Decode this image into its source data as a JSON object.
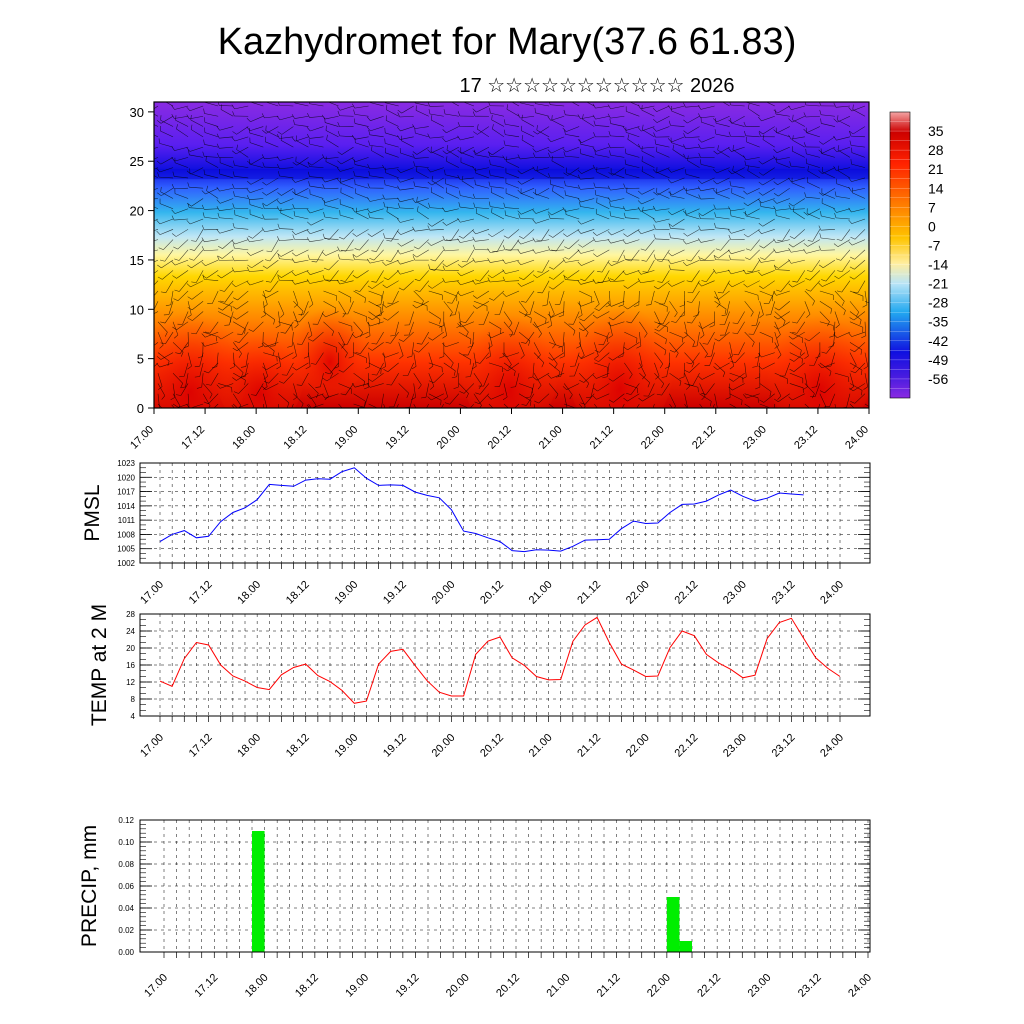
{
  "title": "Kazhydromet for Mary(37.6 61.83)",
  "subtitle": "17 ☆☆☆☆☆☆☆☆☆☆☆ 2026",
  "colors": {
    "pmsl_line": "#0000ff",
    "temp_line": "#ff0000",
    "precip_bar": "#00ee00",
    "wind_barb": "#000000",
    "gridline": "#000000"
  },
  "chart_data": [
    {
      "id": "section",
      "type": "heatmap",
      "description_overlay": "wind barbs",
      "yticks": [
        0,
        5,
        10,
        15,
        20,
        25,
        30
      ],
      "ylim": [
        0,
        31
      ],
      "xlim": [
        17.0,
        24.0
      ],
      "xticks": [
        "17.00",
        "17.12",
        "18.00",
        "18.12",
        "19.00",
        "19.12",
        "20.00",
        "20.12",
        "21.00",
        "21.12",
        "22.00",
        "22.12",
        "23.00",
        "23.12",
        "24.00"
      ],
      "colorbar": {
        "labels": [
          "35",
          "28",
          "21",
          "14",
          "7",
          "0",
          "-7",
          "-14",
          "-21",
          "-28",
          "-35",
          "-42",
          "-49",
          "-56"
        ],
        "range": [
          -63,
          42
        ]
      }
    },
    {
      "id": "pmsl",
      "type": "line",
      "ylabel": "PMSL",
      "ylim": [
        1002,
        1023
      ],
      "yticks": [
        "1002",
        "1005",
        "1008",
        "1011",
        "1014",
        "1017",
        "1020",
        "1023"
      ],
      "xticks": [
        "17.00",
        "17.12",
        "18.00",
        "18.12",
        "19.00",
        "19.12",
        "20.00",
        "20.12",
        "21.00",
        "21.12",
        "22.00",
        "22.12",
        "23.00",
        "23.12",
        "24.00"
      ],
      "step_hours": 3,
      "values": [
        1006.5,
        1008.0,
        1008.8,
        1007.3,
        1007.6,
        1010.7,
        1012.6,
        1013.6,
        1015.3,
        1018.5,
        1018.3,
        1018.1,
        1019.4,
        1019.7,
        1019.6,
        1021.2,
        1022.0,
        1019.8,
        1018.3,
        1018.4,
        1018.3,
        1016.9,
        1016.2,
        1015.7,
        1013.2,
        1008.7,
        1008.2,
        1007.3,
        1006.5,
        1004.6,
        1004.4,
        1004.8,
        1004.7,
        1004.5,
        1005.5,
        1006.8,
        1006.9,
        1007.0,
        1009.2,
        1010.8,
        1010.3,
        1010.4,
        1012.6,
        1014.3,
        1014.4,
        1015.0,
        1016.3,
        1017.3,
        1016.0,
        1015.0,
        1015.6,
        1016.7,
        1016.5,
        1016.3
      ]
    },
    {
      "id": "temp",
      "type": "line",
      "ylabel": "TEMP at 2 M",
      "ylim": [
        4,
        28
      ],
      "yticks": [
        "4",
        "8",
        "12",
        "16",
        "20",
        "24",
        "28"
      ],
      "xticks": [
        "17.00",
        "17.12",
        "18.00",
        "18.12",
        "19.00",
        "19.12",
        "20.00",
        "20.12",
        "21.00",
        "21.12",
        "22.00",
        "22.12",
        "23.00",
        "23.12",
        "24.00"
      ],
      "step_hours": 3,
      "values": [
        12.2,
        11.0,
        17.5,
        21.3,
        20.7,
        16.0,
        13.4,
        12.2,
        10.7,
        10.2,
        13.7,
        15.4,
        16.2,
        13.5,
        12.1,
        10.0,
        7.0,
        7.5,
        16.2,
        19.2,
        19.7,
        15.9,
        12.3,
        9.6,
        8.7,
        8.7,
        18.5,
        21.6,
        22.6,
        17.7,
        15.9,
        13.3,
        12.5,
        12.6,
        21.6,
        25.4,
        27.2,
        21.3,
        16.2,
        14.8,
        13.3,
        13.4,
        20.1,
        24.0,
        22.9,
        18.5,
        16.5,
        15.0,
        13.0,
        13.6,
        22.2,
        26.0,
        27.0,
        22.3,
        17.7,
        15.2,
        13.3
      ]
    },
    {
      "id": "precip",
      "type": "bar",
      "ylabel": "PRECIP, mm",
      "ylim": [
        0,
        0.12
      ],
      "yticks": [
        "0.00",
        "0.02",
        "0.04",
        "0.06",
        "0.08",
        "0.10",
        "0.12"
      ],
      "xticks": [
        "17.00",
        "17.12",
        "18.00",
        "18.12",
        "19.00",
        "19.12",
        "20.00",
        "20.12",
        "21.00",
        "21.12",
        "22.00",
        "22.12",
        "23.00",
        "23.12",
        "24.00"
      ],
      "step_hours": 3,
      "bars": [
        {
          "hour": 21,
          "value": 0.11
        },
        {
          "hour": 120,
          "value": 0.05
        },
        {
          "hour": 123,
          "value": 0.01
        }
      ]
    }
  ]
}
